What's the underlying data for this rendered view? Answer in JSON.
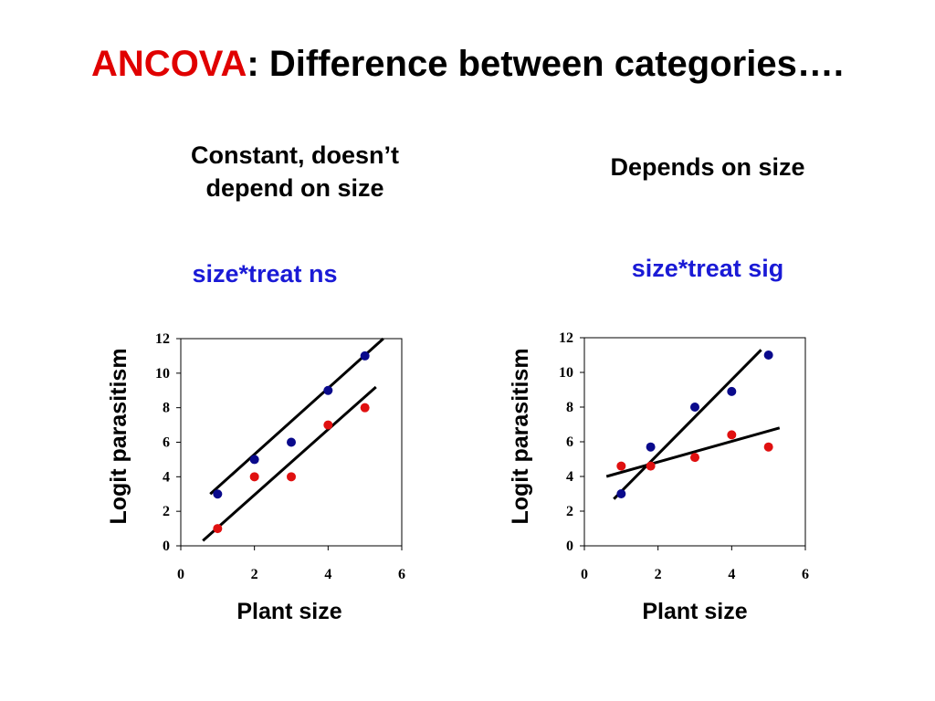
{
  "title": {
    "accent": "ANCOVA",
    "rest": ": Difference between categories…."
  },
  "left_panel": {
    "heading_line1": "Constant, doesn’t",
    "heading_line2": "depend on size",
    "note": "size*treat ns"
  },
  "right_panel": {
    "heading": "Depends on size",
    "note": "size*treat sig"
  },
  "colors": {
    "accent_red": "#e00000",
    "note_blue": "#1a1ad6",
    "series_blue": "#0a0a8c",
    "series_red": "#e01010",
    "line": "#000000"
  },
  "chart_data": [
    {
      "type": "scatter",
      "xlabel": "Plant size",
      "ylabel": "Logit parasitism",
      "xlim": [
        0,
        6
      ],
      "ylim": [
        0,
        12
      ],
      "xticks": [
        0,
        2,
        4,
        6
      ],
      "yticks": [
        0,
        2,
        4,
        6,
        8,
        10,
        12
      ],
      "grid": false,
      "series": [
        {
          "color": "#0a0a8c",
          "points": [
            [
              1,
              3
            ],
            [
              2,
              5
            ],
            [
              3,
              6
            ],
            [
              4,
              9
            ],
            [
              5,
              11
            ]
          ]
        },
        {
          "color": "#e01010",
          "points": [
            [
              1,
              1
            ],
            [
              2,
              4
            ],
            [
              3,
              4
            ],
            [
              4,
              7
            ],
            [
              5,
              8
            ]
          ]
        }
      ],
      "fit_lines": [
        {
          "from": [
            0.8,
            3.0
          ],
          "to": [
            5.5,
            12.0
          ]
        },
        {
          "from": [
            0.6,
            0.3
          ],
          "to": [
            5.3,
            9.2
          ]
        }
      ]
    },
    {
      "type": "scatter",
      "xlabel": "Plant size",
      "ylabel": "Logit parasitism",
      "xlim": [
        0,
        6
      ],
      "ylim": [
        0,
        12
      ],
      "xticks": [
        0,
        2,
        4,
        6
      ],
      "yticks": [
        0,
        2,
        4,
        6,
        8,
        10,
        12
      ],
      "grid": false,
      "series": [
        {
          "color": "#0a0a8c",
          "points": [
            [
              1,
              3
            ],
            [
              1.8,
              5.7
            ],
            [
              3,
              8
            ],
            [
              4,
              8.9
            ],
            [
              5,
              11
            ]
          ]
        },
        {
          "color": "#e01010",
          "points": [
            [
              1,
              4.6
            ],
            [
              1.8,
              4.6
            ],
            [
              3,
              5.1
            ],
            [
              4,
              6.4
            ],
            [
              5,
              5.7
            ]
          ]
        }
      ],
      "fit_lines": [
        {
          "from": [
            0.8,
            2.7
          ],
          "to": [
            4.8,
            11.3
          ]
        },
        {
          "from": [
            0.6,
            4.0
          ],
          "to": [
            5.3,
            6.8
          ]
        }
      ]
    }
  ]
}
